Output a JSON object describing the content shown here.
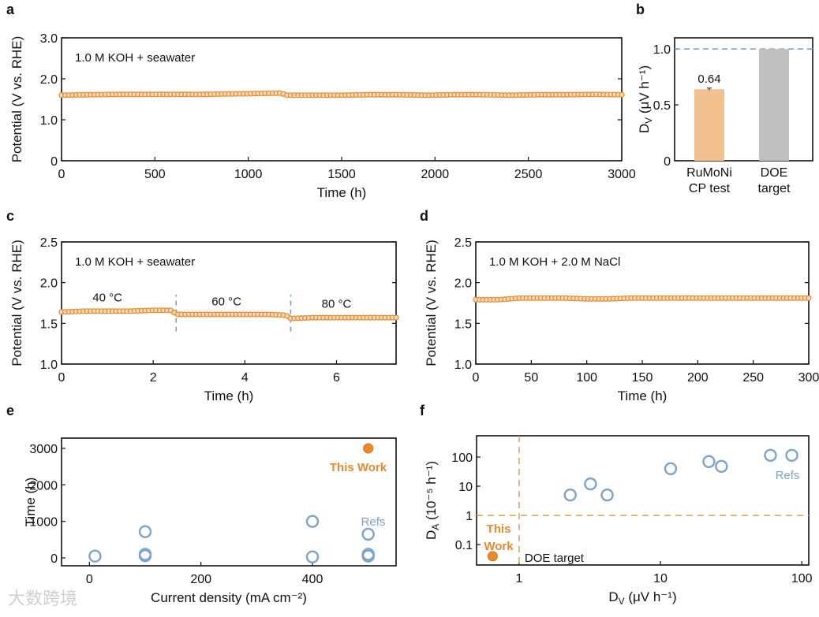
{
  "colors": {
    "orange": "#e88a2e",
    "orange_light": "#f3c08f",
    "gray": "#c0c0c0",
    "blue": "#7ba3cc",
    "blue_dash": "#6f9bc9",
    "orange_dash": "#e0a050"
  },
  "watermark": "大数跨境",
  "chart_data": [
    {
      "id": "a",
      "type": "line",
      "panel_label": "a",
      "xlabel": "Time (h)",
      "ylabel": "Potential (V vs. RHE)",
      "xlim": [
        0,
        3000
      ],
      "ylim": [
        0,
        3
      ],
      "xticks": [
        0,
        500,
        1000,
        1500,
        2000,
        2500,
        3000
      ],
      "yticks": [
        0,
        1,
        2,
        3
      ],
      "ytick_labels": [
        "0",
        "1.0",
        "2.0",
        "3.0"
      ],
      "annotations": [
        "1.0 M KOH + seawater"
      ],
      "series": [
        {
          "name": "RuMoNi",
          "x": [
            0,
            150,
            300,
            450,
            600,
            750,
            900,
            1050,
            1180,
            1200,
            1350,
            1500,
            1650,
            1800,
            1950,
            2100,
            2250,
            2400,
            2550,
            2700,
            2850,
            3000
          ],
          "y": [
            1.6,
            1.61,
            1.62,
            1.62,
            1.62,
            1.62,
            1.63,
            1.64,
            1.65,
            1.6,
            1.6,
            1.6,
            1.61,
            1.61,
            1.6,
            1.61,
            1.61,
            1.6,
            1.61,
            1.61,
            1.62,
            1.61
          ]
        }
      ]
    },
    {
      "id": "b",
      "type": "bar",
      "panel_label": "b",
      "ylabel": "D_V (μV h⁻¹)",
      "ylim": [
        0,
        1.1
      ],
      "yticks": [
        0,
        0.5,
        1.0
      ],
      "ytick_labels": [
        "0",
        "0.5",
        "1.0"
      ],
      "categories": [
        [
          "RuMoNi",
          "CP test"
        ],
        [
          "DOE",
          "target"
        ]
      ],
      "values": [
        0.64,
        1.0
      ],
      "error": [
        0.01,
        0
      ],
      "data_labels": [
        "0.64",
        ""
      ],
      "hline": 1.0
    },
    {
      "id": "c",
      "type": "line",
      "panel_label": "c",
      "xlabel": "Time (h)",
      "ylabel": "Potential (V vs. RHE)",
      "xlim": [
        0,
        7.3
      ],
      "ylim": [
        1.0,
        2.5
      ],
      "xticks": [
        0,
        2,
        4,
        6
      ],
      "yticks": [
        1.0,
        1.5,
        2.0,
        2.5
      ],
      "ytick_labels": [
        "1.0",
        "1.5",
        "2.0",
        "2.5"
      ],
      "annotations": [
        "1.0 M KOH + seawater"
      ],
      "vlines": [
        2.5,
        5
      ],
      "segment_labels": [
        {
          "text": "40 °C",
          "x": 1.0,
          "y": 1.77
        },
        {
          "text": "60 °C",
          "x": 3.6,
          "y": 1.72
        },
        {
          "text": "80 °C",
          "x": 6.0,
          "y": 1.69
        }
      ],
      "series": [
        {
          "name": "RuMoNi",
          "x": [
            0,
            0.5,
            1,
            1.5,
            2,
            2.4,
            2.5,
            3,
            3.5,
            4,
            4.5,
            4.9,
            5,
            5.5,
            6,
            6.5,
            7,
            7.3
          ],
          "y": [
            1.64,
            1.65,
            1.65,
            1.65,
            1.66,
            1.66,
            1.61,
            1.61,
            1.61,
            1.61,
            1.61,
            1.6,
            1.56,
            1.57,
            1.57,
            1.57,
            1.57,
            1.57
          ]
        }
      ]
    },
    {
      "id": "d",
      "type": "line",
      "panel_label": "d",
      "xlabel": "Time (h)",
      "ylabel": "Potential (V vs. RHE)",
      "xlim": [
        0,
        300
      ],
      "ylim": [
        1.0,
        2.5
      ],
      "xticks": [
        0,
        50,
        100,
        150,
        200,
        250,
        300
      ],
      "yticks": [
        1.0,
        1.5,
        2.0,
        2.5
      ],
      "ytick_labels": [
        "1.0",
        "1.5",
        "2.0",
        "2.5"
      ],
      "annotations": [
        "1.0 M KOH + 2.0 M NaCl"
      ],
      "series": [
        {
          "name": "RuMoNi",
          "x": [
            0,
            20,
            40,
            60,
            80,
            100,
            120,
            140,
            160,
            180,
            200,
            220,
            240,
            260,
            280,
            300
          ],
          "y": [
            1.79,
            1.79,
            1.81,
            1.81,
            1.81,
            1.8,
            1.8,
            1.81,
            1.81,
            1.81,
            1.81,
            1.81,
            1.81,
            1.81,
            1.81,
            1.81
          ]
        }
      ]
    },
    {
      "id": "e",
      "type": "scatter",
      "panel_label": "e",
      "xlabel": "Current density (mA cm⁻²)",
      "ylabel": "Time (h)",
      "xlim": [
        -50,
        550
      ],
      "ylim": [
        -215,
        3280
      ],
      "xticks": [
        0,
        200,
        400
      ],
      "yticks": [
        0,
        1000,
        2000,
        3000
      ],
      "ytick_labels": [
        "0",
        "1000",
        "2000",
        "3000"
      ],
      "series": [
        {
          "name": "This Work",
          "x": [
            500
          ],
          "y": [
            3000
          ]
        },
        {
          "name": "Refs",
          "x": [
            10,
            100,
            100,
            100,
            400,
            400,
            500,
            500,
            500
          ],
          "y": [
            50,
            720,
            100,
            60,
            1000,
            30,
            650,
            100,
            50
          ]
        }
      ]
    },
    {
      "id": "f",
      "type": "scatter",
      "panel_label": "f",
      "xlabel": "D_V (μV h⁻¹)",
      "ylabel": "D_A (10⁻⁵ h⁻¹)",
      "xscale": "log",
      "yscale": "log",
      "xlim": [
        0.5,
        112
      ],
      "ylim": [
        0.02,
        537
      ],
      "xticks": [
        1,
        10,
        100
      ],
      "yticks": [
        0.1,
        1,
        10,
        100
      ],
      "ytick_labels": [
        "0.1",
        "1",
        "10",
        "100"
      ],
      "xtick_labels": [
        "1",
        "10",
        "100"
      ],
      "hline": 1,
      "vline": 1,
      "annotations": [
        "DOE target"
      ],
      "series": [
        {
          "name": "This Work",
          "x": [
            0.65
          ],
          "y": [
            0.04
          ]
        },
        {
          "name": "Refs",
          "x": [
            2.3,
            3.2,
            4.2,
            11.8,
            22,
            27,
            60,
            85
          ],
          "y": [
            5,
            12,
            5,
            40,
            70,
            48,
            115,
            115
          ]
        }
      ]
    }
  ]
}
